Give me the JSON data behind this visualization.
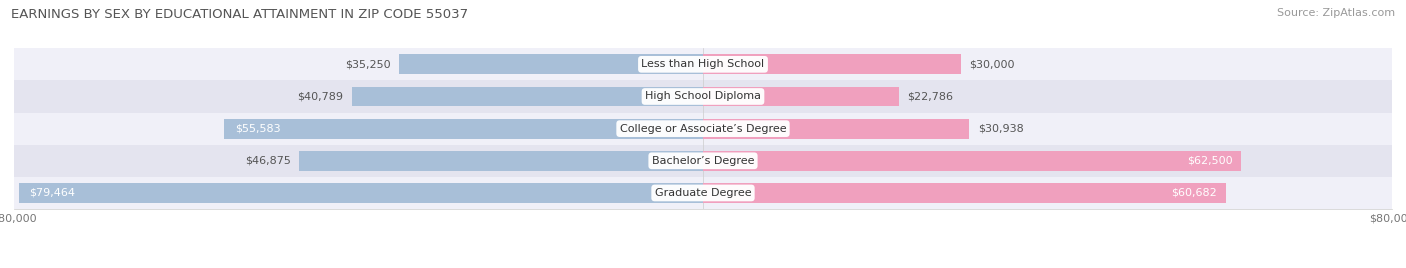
{
  "title": "EARNINGS BY SEX BY EDUCATIONAL ATTAINMENT IN ZIP CODE 55037",
  "source": "Source: ZipAtlas.com",
  "categories": [
    "Less than High School",
    "High School Diploma",
    "College or Associate’s Degree",
    "Bachelor’s Degree",
    "Graduate Degree"
  ],
  "male_values": [
    35250,
    40789,
    55583,
    46875,
    79464
  ],
  "female_values": [
    30000,
    22786,
    30938,
    62500,
    60682
  ],
  "male_color": "#a8bfd8",
  "female_color": "#f0a0be",
  "male_color_dark": "#8090c0",
  "female_color_dark": "#e06090",
  "row_bg_colors": [
    "#f0f0f8",
    "#e4e4ef"
  ],
  "max_val": 80000,
  "bar_height": 0.62,
  "title_fontsize": 9.5,
  "source_fontsize": 8,
  "label_fontsize": 8,
  "cat_fontsize": 8,
  "axis_fontsize": 8,
  "figsize": [
    14.06,
    2.68
  ],
  "dpi": 100
}
